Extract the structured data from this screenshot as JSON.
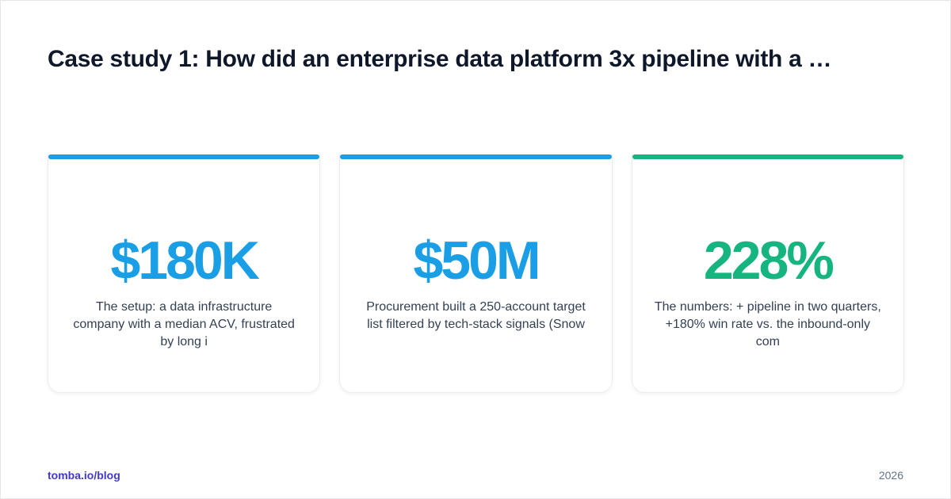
{
  "title": "Case study 1: How did an enterprise data platform 3x pipeline with a …",
  "cards": [
    {
      "stat": "$180K",
      "description": "The setup: a data infrastructure company with a median ACV, frustrated by long i",
      "accent_color": "#1a9ee6"
    },
    {
      "stat": "$50M",
      "description": "Procurement built a 250-account target list filtered by tech-stack signals (Snow",
      "accent_color": "#1a9ee6"
    },
    {
      "stat": "228%",
      "description": "The numbers: + pipeline in two quarters, +180% win rate vs. the inbound-only com",
      "accent_color": "#16b47e"
    }
  ],
  "footer": {
    "site": "tomba.io/blog",
    "year": "2026"
  },
  "colors": {
    "title": "#0f172a",
    "footer_link": "#4338ca",
    "body_text": "#334155"
  }
}
